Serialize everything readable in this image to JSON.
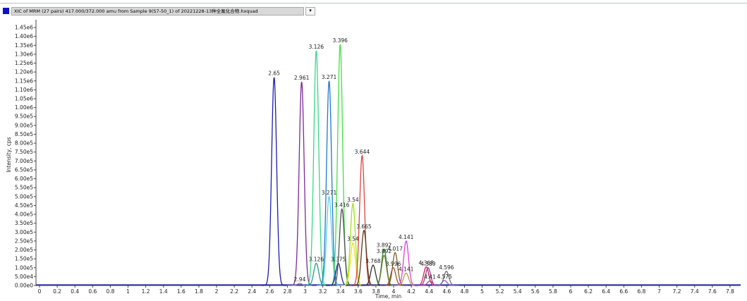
{
  "header": {
    "trace": "XIC of MRM (27 pairs) 417.000/372.000 amu from Sample 9(S7-50_1) of 20221228-13种全氟化合物.hxquad"
  },
  "chart_data": {
    "type": "chromatogram",
    "x_label": "Time, min",
    "y_label": "Intensity, cps",
    "xlim": [
      -0.04,
      7.92
    ],
    "ylim": [
      0,
      1470000
    ],
    "xticks": [
      0,
      0.2,
      0.4,
      0.6,
      0.8,
      1,
      1.2,
      1.4,
      1.6,
      1.8,
      2,
      2.2,
      2.4,
      2.6,
      2.8,
      3,
      3.2,
      3.4,
      3.6,
      3.8,
      4,
      4.2,
      4.4,
      4.6,
      4.8,
      5,
      5.2,
      5.4,
      5.6,
      5.8,
      6,
      6.2,
      6.4,
      6.6,
      6.8,
      7,
      7.2,
      7.4,
      7.6,
      7.8
    ],
    "yticks": [
      {
        "value": 0,
        "label": "0.00e0"
      },
      {
        "value": 50000,
        "label": "5.00e4"
      },
      {
        "value": 100000,
        "label": "1.00e5"
      },
      {
        "value": 150000,
        "label": "1.50e5"
      },
      {
        "value": 200000,
        "label": "2.00e5"
      },
      {
        "value": 250000,
        "label": "2.50e5"
      },
      {
        "value": 300000,
        "label": "3.00e5"
      },
      {
        "value": 350000,
        "label": "3.50e5"
      },
      {
        "value": 400000,
        "label": "4.00e5"
      },
      {
        "value": 450000,
        "label": "4.50e5"
      },
      {
        "value": 500000,
        "label": "5.00e5"
      },
      {
        "value": 550000,
        "label": "5.50e5"
      },
      {
        "value": 600000,
        "label": "6.00e5"
      },
      {
        "value": 650000,
        "label": "6.50e5"
      },
      {
        "value": 700000,
        "label": "7.00e5"
      },
      {
        "value": 750000,
        "label": "7.50e5"
      },
      {
        "value": 800000,
        "label": "8.00e5"
      },
      {
        "value": 850000,
        "label": "8.50e5"
      },
      {
        "value": 900000,
        "label": "9.00e5"
      },
      {
        "value": 950000,
        "label": "9.50e5"
      },
      {
        "value": 1000000,
        "label": "1.00e6"
      },
      {
        "value": 1050000,
        "label": "1.05e6"
      },
      {
        "value": 1100000,
        "label": "1.10e6"
      },
      {
        "value": 1150000,
        "label": "1.15e6"
      },
      {
        "value": 1200000,
        "label": "1.20e6"
      },
      {
        "value": 1250000,
        "label": "1.25e6"
      },
      {
        "value": 1300000,
        "label": "1.30e6"
      },
      {
        "value": 1350000,
        "label": "1.35e6"
      },
      {
        "value": 1400000,
        "label": "1.40e6"
      },
      {
        "value": 1450000,
        "label": "1.45e6"
      }
    ],
    "peaks": [
      {
        "x": 2.65,
        "height": 1170000,
        "color": "#1c1cb4"
      },
      {
        "x": 2.961,
        "height": 1145000,
        "color": "#7a2a9a"
      },
      {
        "x": 2.94,
        "height": 12000,
        "color": "#8a8a8a"
      },
      {
        "x": 3.126,
        "height": 1320000,
        "color": "#38d888"
      },
      {
        "x": 3.271,
        "height": 1150000,
        "color": "#1f78d0"
      },
      {
        "x": 3.396,
        "height": 1355000,
        "color": "#44e044"
      },
      {
        "x": 3.271,
        "height": 500000,
        "color": "#5ccfea"
      },
      {
        "x": 3.126,
        "height": 125000,
        "color": "#2a9a8a"
      },
      {
        "x": 3.375,
        "height": 125000,
        "color": "#2020a0"
      },
      {
        "x": 3.416,
        "height": 430000,
        "color": "#505050"
      },
      {
        "x": 3.54,
        "height": 460000,
        "color": "#a0e020"
      },
      {
        "x": 3.54,
        "height": 240000,
        "color": "#e8e020"
      },
      {
        "x": 3.644,
        "height": 730000,
        "color": "#e04040"
      },
      {
        "x": 3.665,
        "height": 310000,
        "color": "#5a3a1a"
      },
      {
        "x": 3.768,
        "height": 115000,
        "color": "#303030"
      },
      {
        "x": 3.892,
        "height": 205000,
        "color": "#2a8a3a"
      },
      {
        "x": 3.892,
        "height": 170000,
        "color": "#6a7a2a"
      },
      {
        "x": 4.017,
        "height": 185000,
        "color": "#806020"
      },
      {
        "x": 3.996,
        "height": 100000,
        "color": "#a05030"
      },
      {
        "x": 4.141,
        "height": 250000,
        "color": "#e040e0"
      },
      {
        "x": 4.141,
        "height": 70000,
        "color": "#b0a040"
      },
      {
        "x": 4.368,
        "height": 105000,
        "color": "#d02050"
      },
      {
        "x": 4.389,
        "height": 100000,
        "color": "#9040a0"
      },
      {
        "x": 4.41,
        "height": 25000,
        "color": "#c04080"
      },
      {
        "x": 4.596,
        "height": 80000,
        "color": "#707070"
      },
      {
        "x": 4.575,
        "height": 28000,
        "color": "#8060c0"
      }
    ]
  }
}
